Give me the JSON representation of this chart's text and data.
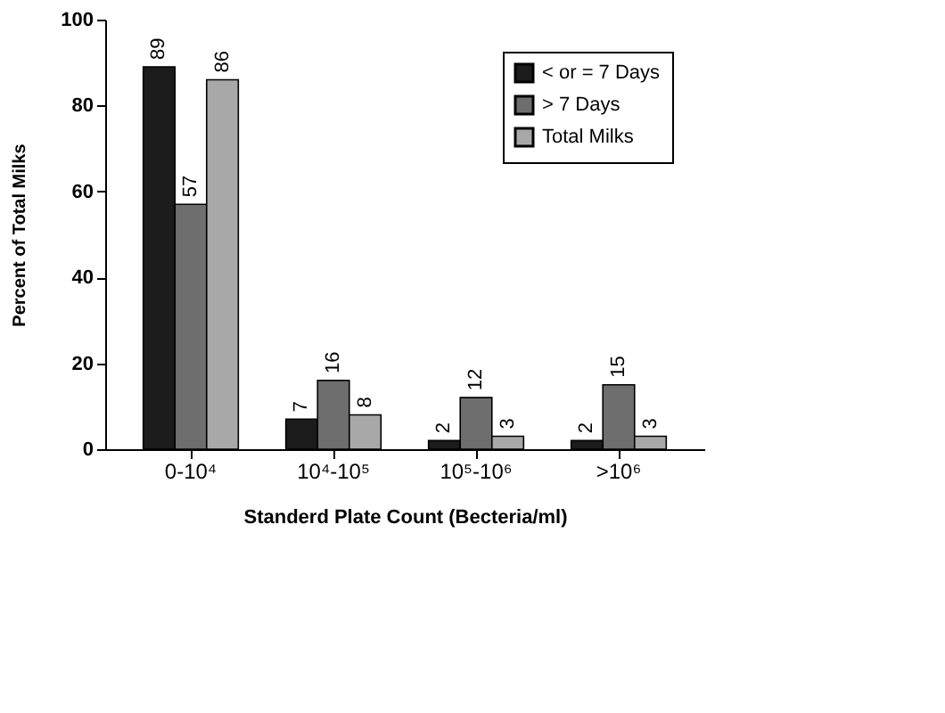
{
  "chart_data": {
    "type": "bar",
    "xlabel": "Standerd Plate Count (Becteria/ml)",
    "ylabel": "Percent of Total Milks",
    "categories": [
      "0-10⁴",
      "10⁴-10⁵",
      "10⁵-10⁶",
      ">10⁶"
    ],
    "series": [
      {
        "name": "< or = 7 Days",
        "color": "#1c1c1c",
        "values": [
          89,
          7,
          2,
          2
        ]
      },
      {
        "name": "> 7 Days",
        "color": "#6e6e6e",
        "values": [
          57,
          16,
          12,
          15
        ]
      },
      {
        "name": "Total Milks",
        "color": "#a8a8a8",
        "values": [
          86,
          8,
          3,
          3
        ]
      }
    ],
    "ylim": [
      0,
      100
    ],
    "yticks": [
      0,
      20,
      40,
      60,
      80,
      100
    ],
    "grid": false,
    "legend": "top right",
    "data_labels": true
  }
}
